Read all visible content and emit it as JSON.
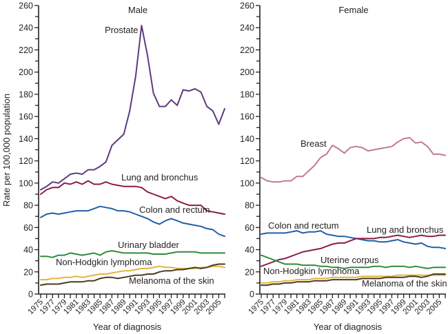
{
  "chart_data": [
    {
      "type": "line",
      "title": "Male",
      "xlabel": "Year of diagnosis",
      "ylabel": "Rate per 100,000 population",
      "ylim": [
        0,
        260
      ],
      "yticks": [
        0,
        20,
        40,
        60,
        80,
        100,
        120,
        140,
        160,
        180,
        200,
        220,
        240,
        260
      ],
      "xlim": [
        1975,
        2006
      ],
      "xtick_labels": [
        "1975",
        "1977",
        "1979",
        "1981",
        "1983",
        "1985",
        "1987",
        "1989",
        "1991",
        "1993",
        "1995",
        "1997",
        "1999",
        "2001",
        "2003",
        "2005"
      ],
      "x": [
        1975,
        1976,
        1977,
        1978,
        1979,
        1980,
        1981,
        1982,
        1983,
        1984,
        1985,
        1986,
        1987,
        1988,
        1989,
        1990,
        1991,
        1992,
        1993,
        1994,
        1995,
        1996,
        1997,
        1998,
        1999,
        2000,
        2001,
        2002,
        2003,
        2004,
        2005,
        2006
      ],
      "series": [
        {
          "name": "Prostate",
          "color": "#5b3a7e",
          "values": [
            94,
            97,
            101,
            100,
            104,
            108,
            109,
            108,
            112,
            112,
            115,
            119,
            134,
            139,
            144,
            165,
            196,
            242,
            215,
            181,
            169,
            169,
            175,
            170,
            184,
            183,
            185,
            182,
            169,
            165,
            153,
            167
          ]
        },
        {
          "name": "Lung and bronchus",
          "color": "#8b1a46",
          "values": [
            90,
            94,
            96,
            96,
            100,
            99,
            101,
            99,
            102,
            99,
            99,
            101,
            99,
            98,
            97,
            97,
            97,
            96,
            92,
            90,
            88,
            86,
            88,
            84,
            82,
            80,
            80,
            80,
            75,
            74,
            73,
            72
          ]
        },
        {
          "name": "Colon and rectum",
          "color": "#1f5fa8",
          "values": [
            69,
            72,
            73,
            72,
            73,
            74,
            75,
            75,
            75,
            77,
            79,
            78,
            77,
            75,
            75,
            74,
            72,
            70,
            68,
            65,
            63,
            66,
            68,
            66,
            64,
            63,
            62,
            61,
            59,
            58,
            54,
            52
          ]
        },
        {
          "name": "Urinary bladder",
          "color": "#2e8b3a",
          "values": [
            34,
            34,
            33,
            35,
            35,
            37,
            36,
            35,
            36,
            37,
            35,
            38,
            39,
            38,
            37,
            37,
            37,
            37,
            37,
            36,
            36,
            36,
            37,
            38,
            38,
            38,
            38,
            37,
            37,
            37,
            37,
            37
          ]
        },
        {
          "name": "Non-Hodgkin lymphoma",
          "color": "#e3b23c",
          "values": [
            13,
            13,
            14,
            14,
            15,
            15,
            16,
            15,
            16,
            17,
            18,
            18,
            19,
            20,
            21,
            21,
            22,
            23,
            23,
            24,
            25,
            24,
            24,
            23,
            23,
            23,
            23,
            24,
            24,
            25,
            25,
            24
          ]
        },
        {
          "name": "Melanoma of the skin",
          "color": "#4a3a1e",
          "values": [
            8,
            9,
            9,
            9,
            10,
            11,
            11,
            11,
            12,
            12,
            14,
            15,
            15,
            14,
            15,
            16,
            17,
            17,
            18,
            18,
            20,
            21,
            21,
            22,
            22,
            23,
            24,
            23,
            24,
            26,
            27,
            27
          ]
        }
      ]
    },
    {
      "type": "line",
      "title": "Female",
      "xlabel": "Year of diagnosis",
      "ylabel": "",
      "ylim": [
        0,
        260
      ],
      "yticks": [
        0,
        20,
        40,
        60,
        80,
        100,
        120,
        140,
        160,
        180,
        200,
        220,
        240,
        260
      ],
      "xlim": [
        1975,
        2006
      ],
      "xtick_labels": [
        "1975",
        "1977",
        "1979",
        "1981",
        "1983",
        "1985",
        "1987",
        "1989",
        "1991",
        "1993",
        "1995",
        "1997",
        "1999",
        "2001",
        "2003",
        "2005"
      ],
      "x": [
        1975,
        1976,
        1977,
        1978,
        1979,
        1980,
        1981,
        1982,
        1983,
        1984,
        1985,
        1986,
        1987,
        1988,
        1989,
        1990,
        1991,
        1992,
        1993,
        1994,
        1995,
        1996,
        1997,
        1998,
        1999,
        2000,
        2001,
        2002,
        2003,
        2004,
        2005,
        2006
      ],
      "series": [
        {
          "name": "Breast",
          "color": "#c27a8a",
          "values": [
            105,
            102,
            101,
            101,
            102,
            102,
            106,
            106,
            111,
            116,
            123,
            126,
            134,
            131,
            127,
            132,
            133,
            132,
            129,
            130,
            131,
            132,
            133,
            137,
            140,
            141,
            136,
            137,
            133,
            126,
            126,
            125
          ]
        },
        {
          "name": "Colon and rectum",
          "color": "#1f5fa8",
          "values": [
            54,
            55,
            55,
            55,
            55,
            56,
            57,
            55,
            56,
            56,
            57,
            54,
            53,
            52,
            52,
            51,
            50,
            49,
            48,
            48,
            47,
            47,
            48,
            49,
            47,
            46,
            45,
            46,
            43,
            42,
            42,
            41
          ]
        },
        {
          "name": "Lung and bronchus",
          "color": "#8b1a46",
          "values": [
            25,
            27,
            29,
            31,
            32,
            34,
            36,
            38,
            39,
            40,
            41,
            43,
            45,
            46,
            46,
            48,
            50,
            50,
            50,
            50,
            51,
            51,
            52,
            53,
            52,
            51,
            52,
            53,
            52,
            52,
            53,
            53
          ]
        },
        {
          "name": "Uterine corpus",
          "color": "#2e8b3a",
          "values": [
            35,
            33,
            31,
            29,
            27,
            27,
            27,
            26,
            26,
            26,
            25,
            25,
            24,
            24,
            23,
            24,
            24,
            24,
            24,
            25,
            25,
            24,
            25,
            25,
            25,
            24,
            25,
            24,
            23,
            24,
            24,
            24
          ]
        },
        {
          "name": "Non-Hodgkin lymphoma",
          "color": "#e3b23c",
          "values": [
            10,
            10,
            11,
            11,
            12,
            12,
            13,
            13,
            13,
            14,
            14,
            14,
            15,
            15,
            15,
            15,
            15,
            16,
            16,
            16,
            16,
            16,
            16,
            17,
            17,
            17,
            17,
            17,
            17,
            17,
            17,
            17
          ]
        },
        {
          "name": "Melanoma of the skin",
          "color": "#4a3a1e",
          "values": [
            8,
            8,
            9,
            9,
            10,
            10,
            11,
            11,
            11,
            12,
            12,
            12,
            13,
            13,
            13,
            13,
            13,
            14,
            14,
            14,
            14,
            15,
            15,
            15,
            15,
            16,
            16,
            15,
            16,
            18,
            18,
            18
          ]
        }
      ]
    }
  ]
}
